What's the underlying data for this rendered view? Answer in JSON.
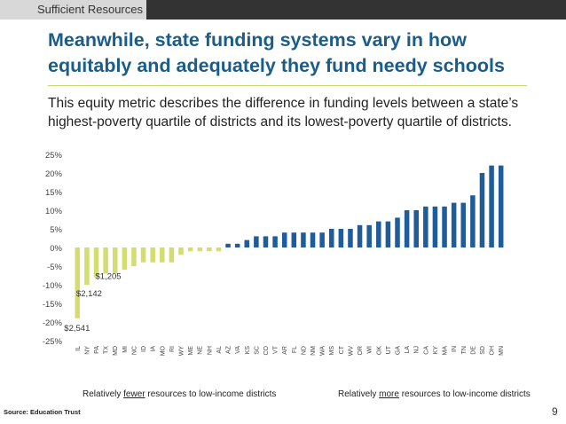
{
  "header": {
    "section_tab": "Sufficient Resources"
  },
  "slide": {
    "title": "Meanwhile, state funding systems vary in how equitably and adequately they fund needy schools",
    "subtitle": "This equity metric describes the difference in funding levels between a state’s highest-poverty quartile of districts and its lowest-poverty quartile of districts."
  },
  "notes": {
    "left_pre": "Relatively ",
    "left_emph": "fewer",
    "left_post": " resources to low-income districts",
    "right_pre": "Relatively ",
    "right_emph": "more",
    "right_post": " resources to low-income districts"
  },
  "footer": {
    "source": "Source: Education Trust",
    "page": "9"
  },
  "colors": {
    "negative": "#d4dd6f",
    "positive": "#1f5c99",
    "title": "#1a5c8a"
  },
  "chart_data": {
    "type": "bar",
    "categories": [
      "IL",
      "NY",
      "PA",
      "TX",
      "MD",
      "MI",
      "NC",
      "ID",
      "IA",
      "MO",
      "RI",
      "WY",
      "ME",
      "NE",
      "NH",
      "AL",
      "AZ",
      "VA",
      "KS",
      "SC",
      "CO",
      "VT",
      "AR",
      "FL",
      "ND",
      "NM",
      "WA",
      "MS",
      "CT",
      "WV",
      "OR",
      "WI",
      "OK",
      "UT",
      "GA",
      "LA",
      "NJ",
      "CA",
      "KY",
      "MA",
      "IN",
      "TN",
      "DE",
      "SD",
      "OH",
      "MN"
    ],
    "values": [
      -19,
      -10,
      -8,
      -7,
      -7,
      -6,
      -5,
      -4,
      -4,
      -4,
      -4,
      -2,
      -1,
      -1,
      -1,
      -1,
      1,
      1,
      2,
      3,
      3,
      3,
      4,
      4,
      4,
      4,
      4,
      5,
      5,
      5,
      6,
      6,
      7,
      7,
      8,
      10,
      10,
      11,
      11,
      11,
      12,
      12,
      14,
      20,
      22,
      22
    ],
    "ylim": [
      -25,
      25
    ],
    "yticks": [
      -25,
      -20,
      -15,
      -10,
      -5,
      0,
      5,
      10,
      15,
      20,
      25
    ],
    "ytick_labels": [
      "-25%",
      "-20%",
      "-15%",
      "-10%",
      "-5%",
      "0%",
      "5%",
      "10%",
      "15%",
      "20%",
      "25%"
    ],
    "annotations": [
      {
        "category": "IL",
        "text": "$2,541"
      },
      {
        "category": "NY",
        "text": "$2,142"
      },
      {
        "category": "PA",
        "text": "$1,205"
      }
    ],
    "grid": false,
    "legend": "none"
  }
}
